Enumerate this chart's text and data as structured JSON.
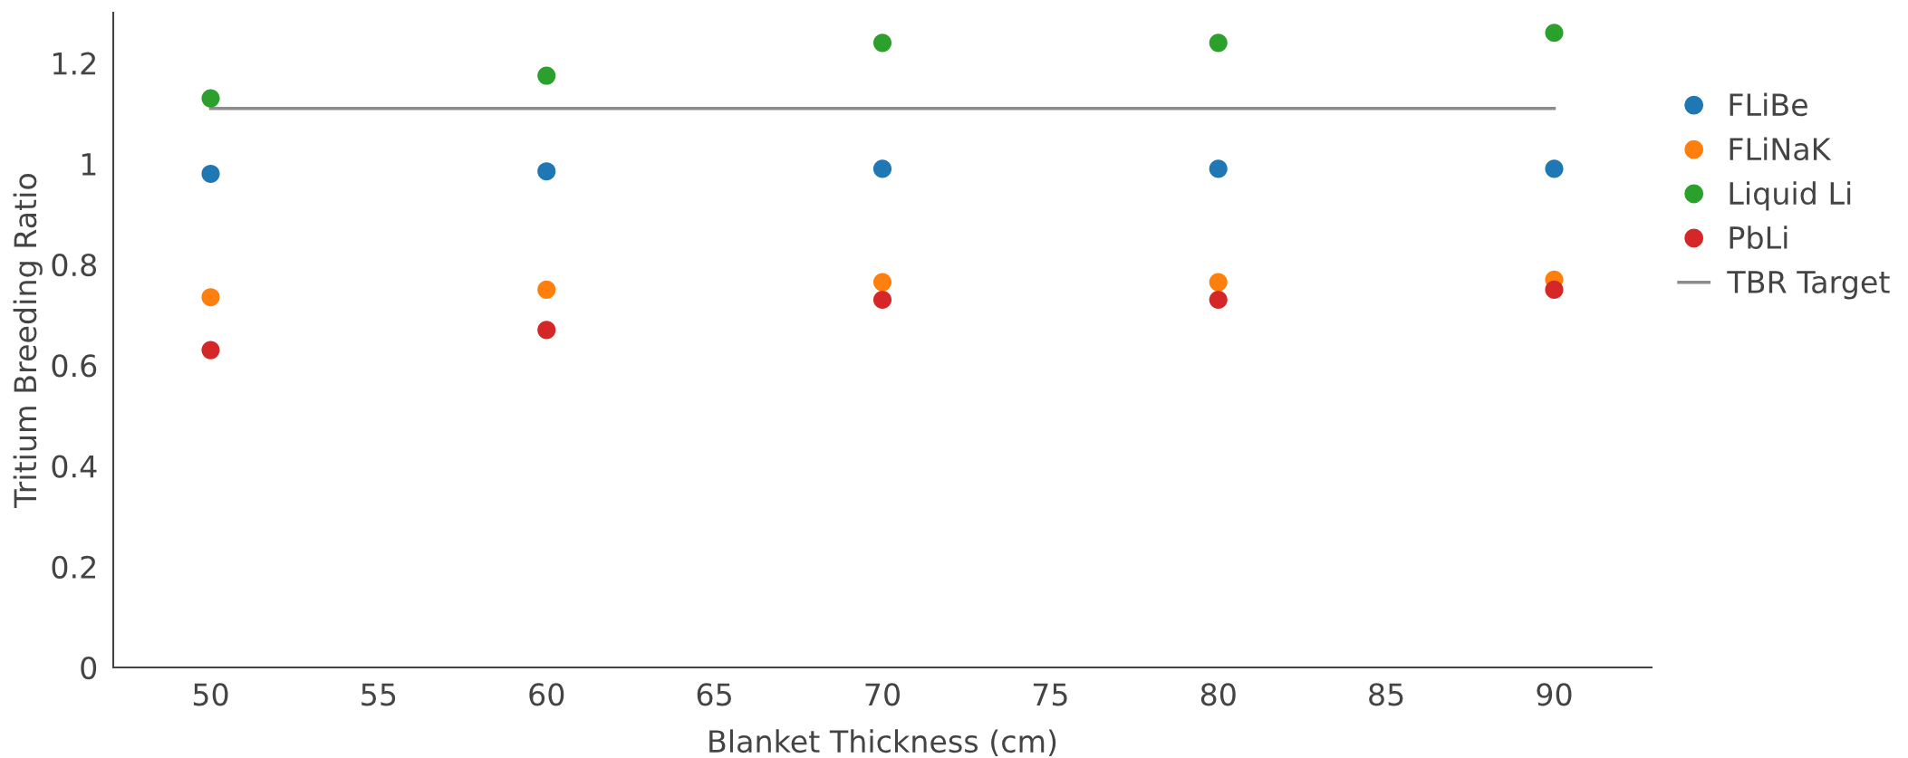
{
  "chart_data": {
    "type": "scatter",
    "xlabel": "Blanket Thickness (cm)",
    "ylabel": "Tritium Breeding Ratio",
    "x": [
      50,
      60,
      70,
      80,
      90
    ],
    "series": [
      {
        "name": "FLiBe",
        "color": "#1f77b4",
        "values": [
          0.98,
          0.985,
          0.99,
          0.99,
          0.99
        ]
      },
      {
        "name": "FLiNaK",
        "color": "#ff7f0e",
        "values": [
          0.735,
          0.75,
          0.765,
          0.765,
          0.77
        ]
      },
      {
        "name": "Liquid Li",
        "color": "#2ca02c",
        "values": [
          1.13,
          1.175,
          1.24,
          1.24,
          1.26
        ]
      },
      {
        "name": "PbLi",
        "color": "#d62728",
        "values": [
          0.63,
          0.67,
          0.73,
          0.73,
          0.75
        ]
      },
      {
        "name": "TBR Target",
        "type": "line",
        "marker": "none",
        "color": "#8c8c8c",
        "x": [
          50,
          90
        ],
        "values": [
          1.11,
          1.11
        ]
      }
    ],
    "xlim": [
      47.1,
      92.9
    ],
    "ylim": [
      0,
      1.3
    ],
    "xticks": [
      50,
      55,
      60,
      65,
      70,
      75,
      80,
      85,
      90
    ],
    "yticks": [
      0,
      0.2,
      0.4,
      0.6,
      0.8,
      1,
      1.2
    ],
    "marker": "circle",
    "grid": false,
    "legend": "right"
  }
}
